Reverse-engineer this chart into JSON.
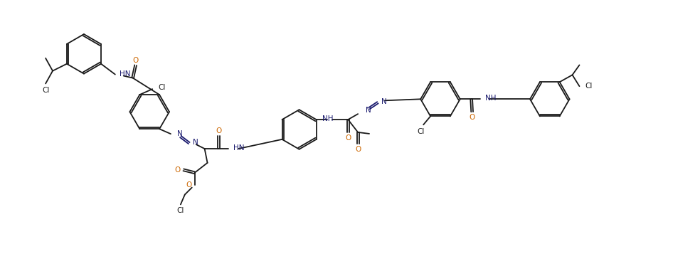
{
  "bg_color": "#ffffff",
  "line_color": "#1a1a1a",
  "N_color": "#1a1a6e",
  "O_color": "#cc6600",
  "Cl_color": "#1a1a1a",
  "figsize": [
    9.84,
    3.57
  ],
  "dpi": 100,
  "xlim": [
    0,
    9.84
  ],
  "ylim": [
    0,
    3.57
  ]
}
